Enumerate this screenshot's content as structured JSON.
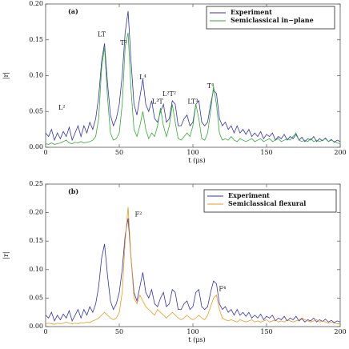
{
  "chart_data": [
    {
      "type": "line",
      "panel_label": "(a)",
      "xlabel": "t (μs)",
      "ylabel": "|r|",
      "xlim": [
        0,
        200
      ],
      "xticks": [
        0,
        50,
        100,
        150,
        200
      ],
      "ylim": [
        0,
        0.2
      ],
      "yticks": [
        {
          "value": 0,
          "label": "0.00"
        },
        0.05,
        {
          "value": 0.1,
          "label": "0.10"
        },
        0.15,
        {
          "value": 0.2,
          "label": "0.20"
        }
      ],
      "annotations": [
        "LT",
        "T²",
        "L⁴",
        "L³T",
        "L²T²",
        "LT³",
        "T⁴",
        "L²"
      ],
      "x": [
        0,
        2,
        4,
        6,
        8,
        10,
        12,
        14,
        16,
        18,
        20,
        22,
        24,
        26,
        28,
        30,
        32,
        34,
        36,
        38,
        40,
        42,
        44,
        46,
        48,
        50,
        52,
        54,
        56,
        58,
        60,
        62,
        64,
        66,
        68,
        70,
        72,
        74,
        76,
        78,
        80,
        82,
        84,
        86,
        88,
        90,
        92,
        94,
        96,
        98,
        100,
        102,
        104,
        106,
        108,
        110,
        112,
        114,
        116,
        118,
        120,
        122,
        124,
        126,
        128,
        130,
        132,
        134,
        136,
        138,
        140,
        142,
        144,
        146,
        148,
        150,
        152,
        154,
        156,
        158,
        160,
        162,
        164,
        166,
        168,
        170,
        172,
        174,
        176,
        178,
        180,
        182,
        184,
        186,
        188,
        190,
        192,
        194,
        196,
        198,
        200
      ],
      "series": [
        {
          "name": "Experiment",
          "color": "#3333aa",
          "values": [
            0.02,
            0.015,
            0.025,
            0.01,
            0.02,
            0.012,
            0.022,
            0.015,
            0.028,
            0.01,
            0.02,
            0.03,
            0.015,
            0.03,
            0.02,
            0.035,
            0.025,
            0.04,
            0.07,
            0.12,
            0.145,
            0.09,
            0.045,
            0.03,
            0.04,
            0.06,
            0.1,
            0.16,
            0.19,
            0.12,
            0.06,
            0.045,
            0.07,
            0.095,
            0.06,
            0.05,
            0.065,
            0.04,
            0.035,
            0.05,
            0.06,
            0.035,
            0.04,
            0.065,
            0.06,
            0.03,
            0.03,
            0.04,
            0.045,
            0.03,
            0.035,
            0.06,
            0.065,
            0.035,
            0.03,
            0.035,
            0.06,
            0.08,
            0.075,
            0.04,
            0.03,
            0.035,
            0.025,
            0.03,
            0.02,
            0.03,
            0.02,
            0.025,
            0.018,
            0.025,
            0.015,
            0.02,
            0.015,
            0.022,
            0.012,
            0.018,
            0.015,
            0.02,
            0.01,
            0.015,
            0.012,
            0.018,
            0.01,
            0.015,
            0.012,
            0.018,
            0.01,
            0.014,
            0.008,
            0.012,
            0.01,
            0.015,
            0.008,
            0.012,
            0.009,
            0.013,
            0.008,
            0.011,
            0.007,
            0.01,
            0.008
          ]
        },
        {
          "name": "Semiclassical in−plane",
          "color": "#33aa33",
          "values": [
            0.005,
            0.004,
            0.006,
            0.004,
            0.005,
            0.006,
            0.008,
            0.01,
            0.006,
            0.005,
            0.007,
            0.006,
            0.008,
            0.006,
            0.007,
            0.008,
            0.01,
            0.015,
            0.04,
            0.11,
            0.14,
            0.07,
            0.02,
            0.01,
            0.012,
            0.02,
            0.06,
            0.14,
            0.16,
            0.08,
            0.025,
            0.015,
            0.03,
            0.05,
            0.025,
            0.012,
            0.02,
            0.015,
            0.03,
            0.055,
            0.03,
            0.015,
            0.03,
            0.06,
            0.035,
            0.012,
            0.01,
            0.015,
            0.02,
            0.015,
            0.03,
            0.06,
            0.04,
            0.012,
            0.01,
            0.02,
            0.05,
            0.085,
            0.06,
            0.02,
            0.01,
            0.012,
            0.01,
            0.015,
            0.01,
            0.008,
            0.012,
            0.01,
            0.008,
            0.01,
            0.012,
            0.008,
            0.01,
            0.012,
            0.008,
            0.01,
            0.012,
            0.008,
            0.01,
            0.012,
            0.008,
            0.01,
            0.012,
            0.01,
            0.015,
            0.02,
            0.01,
            0.008,
            0.01,
            0.008,
            0.012,
            0.008,
            0.01,
            0.008,
            0.01,
            0.012,
            0.008,
            0.01,
            0.008,
            0.006,
            0.005
          ]
        }
      ]
    },
    {
      "type": "line",
      "panel_label": "(b)",
      "xlabel": "t (μs)",
      "ylabel": "|r|",
      "xlim": [
        0,
        200
      ],
      "xticks": [
        0,
        50,
        100,
        150,
        200
      ],
      "ylim": [
        0,
        0.25
      ],
      "yticks": [
        {
          "value": 0,
          "label": "0.00"
        },
        0.05,
        {
          "value": 0.1,
          "label": "0.10"
        },
        0.15,
        {
          "value": 0.2,
          "label": "0.20"
        },
        0.25
      ],
      "annotations": [
        "F²",
        "F⁴"
      ],
      "x": [
        0,
        2,
        4,
        6,
        8,
        10,
        12,
        14,
        16,
        18,
        20,
        22,
        24,
        26,
        28,
        30,
        32,
        34,
        36,
        38,
        40,
        42,
        44,
        46,
        48,
        50,
        52,
        54,
        56,
        58,
        60,
        62,
        64,
        66,
        68,
        70,
        72,
        74,
        76,
        78,
        80,
        82,
        84,
        86,
        88,
        90,
        92,
        94,
        96,
        98,
        100,
        102,
        104,
        106,
        108,
        110,
        112,
        114,
        116,
        118,
        120,
        122,
        124,
        126,
        128,
        130,
        132,
        134,
        136,
        138,
        140,
        142,
        144,
        146,
        148,
        150,
        152,
        154,
        156,
        158,
        160,
        162,
        164,
        166,
        168,
        170,
        172,
        174,
        176,
        178,
        180,
        182,
        184,
        186,
        188,
        190,
        192,
        194,
        196,
        198,
        200
      ],
      "series": [
        {
          "name": "Experiment",
          "color": "#3333aa",
          "values": [
            0.02,
            0.015,
            0.025,
            0.01,
            0.02,
            0.012,
            0.022,
            0.015,
            0.028,
            0.01,
            0.02,
            0.03,
            0.015,
            0.03,
            0.02,
            0.035,
            0.025,
            0.04,
            0.07,
            0.12,
            0.145,
            0.09,
            0.045,
            0.03,
            0.04,
            0.06,
            0.1,
            0.16,
            0.19,
            0.12,
            0.06,
            0.045,
            0.07,
            0.095,
            0.06,
            0.05,
            0.065,
            0.04,
            0.035,
            0.05,
            0.06,
            0.035,
            0.04,
            0.065,
            0.06,
            0.03,
            0.03,
            0.04,
            0.045,
            0.03,
            0.035,
            0.06,
            0.065,
            0.035,
            0.03,
            0.035,
            0.06,
            0.08,
            0.075,
            0.04,
            0.03,
            0.035,
            0.025,
            0.03,
            0.02,
            0.03,
            0.02,
            0.025,
            0.018,
            0.025,
            0.015,
            0.02,
            0.015,
            0.022,
            0.012,
            0.018,
            0.015,
            0.02,
            0.01,
            0.015,
            0.012,
            0.018,
            0.01,
            0.015,
            0.012,
            0.018,
            0.01,
            0.014,
            0.008,
            0.012,
            0.01,
            0.015,
            0.008,
            0.012,
            0.009,
            0.013,
            0.008,
            0.011,
            0.007,
            0.01,
            0.008
          ]
        },
        {
          "name": "Semiclassical flexural",
          "color": "#ee9922",
          "values": [
            0.005,
            0.006,
            0.005,
            0.004,
            0.006,
            0.005,
            0.006,
            0.008,
            0.006,
            0.005,
            0.006,
            0.005,
            0.007,
            0.006,
            0.008,
            0.007,
            0.01,
            0.012,
            0.015,
            0.02,
            0.025,
            0.02,
            0.015,
            0.012,
            0.015,
            0.025,
            0.06,
            0.15,
            0.21,
            0.12,
            0.05,
            0.04,
            0.055,
            0.045,
            0.035,
            0.03,
            0.025,
            0.02,
            0.03,
            0.025,
            0.02,
            0.015,
            0.02,
            0.025,
            0.02,
            0.015,
            0.012,
            0.015,
            0.02,
            0.015,
            0.012,
            0.015,
            0.02,
            0.015,
            0.012,
            0.02,
            0.035,
            0.05,
            0.055,
            0.03,
            0.015,
            0.012,
            0.01,
            0.012,
            0.01,
            0.008,
            0.012,
            0.01,
            0.008,
            0.01,
            0.012,
            0.008,
            0.01,
            0.008,
            0.01,
            0.012,
            0.008,
            0.01,
            0.012,
            0.008,
            0.01,
            0.008,
            0.012,
            0.01,
            0.008,
            0.01,
            0.012,
            0.015,
            0.012,
            0.01,
            0.008,
            0.01,
            0.012,
            0.008,
            0.01,
            0.008,
            0.006,
            0.008,
            0.006,
            0.005,
            0.005
          ]
        }
      ]
    }
  ]
}
